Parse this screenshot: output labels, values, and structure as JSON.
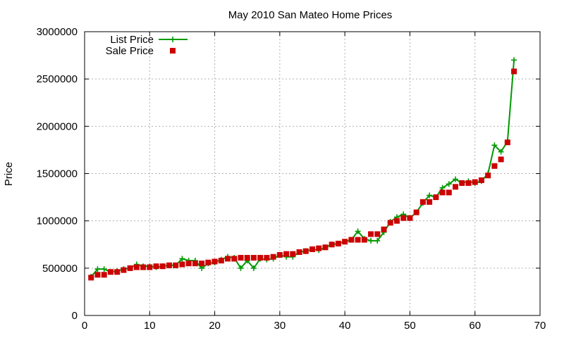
{
  "chart_data": {
    "type": "scatter",
    "title": "May 2010 San Mateo Home Prices",
    "xlabel": "",
    "ylabel": "Price",
    "xlim": [
      0,
      70
    ],
    "ylim": [
      0,
      3000000
    ],
    "xticks": [
      0,
      10,
      20,
      30,
      40,
      50,
      60,
      70
    ],
    "yticks": [
      0,
      500000,
      1000000,
      1500000,
      2000000,
      2500000,
      3000000
    ],
    "grid": true,
    "legend": "top-left",
    "colors": {
      "list": "#009900",
      "sale": "#cc0000"
    },
    "series": [
      {
        "name": "List Price",
        "style": "line-plus",
        "x": [
          1,
          2,
          3,
          4,
          5,
          6,
          7,
          8,
          9,
          10,
          11,
          12,
          13,
          14,
          15,
          16,
          17,
          18,
          19,
          20,
          21,
          22,
          23,
          24,
          25,
          26,
          27,
          28,
          29,
          30,
          31,
          32,
          33,
          34,
          35,
          36,
          37,
          38,
          39,
          40,
          41,
          42,
          43,
          44,
          45,
          46,
          47,
          48,
          49,
          50,
          51,
          52,
          53,
          54,
          55,
          56,
          57,
          58,
          59,
          60,
          61,
          62,
          63,
          64,
          65,
          66
        ],
        "y": [
          410000,
          490000,
          490000,
          460000,
          470000,
          490000,
          500000,
          540000,
          520000,
          520000,
          510000,
          520000,
          530000,
          530000,
          600000,
          580000,
          580000,
          500000,
          550000,
          560000,
          590000,
          620000,
          610000,
          500000,
          580000,
          500000,
          600000,
          590000,
          600000,
          640000,
          620000,
          620000,
          670000,
          680000,
          700000,
          690000,
          720000,
          750000,
          760000,
          780000,
          800000,
          890000,
          810000,
          790000,
          790000,
          880000,
          990000,
          1040000,
          1070000,
          1030000,
          1090000,
          1190000,
          1270000,
          1250000,
          1350000,
          1390000,
          1440000,
          1400000,
          1420000,
          1400000,
          1420000,
          1500000,
          1800000,
          1730000,
          1840000,
          2700000
        ]
      },
      {
        "name": "Sale Price",
        "style": "square",
        "x": [
          1,
          2,
          3,
          4,
          5,
          6,
          7,
          8,
          9,
          10,
          11,
          12,
          13,
          14,
          15,
          16,
          17,
          18,
          19,
          20,
          21,
          22,
          23,
          24,
          25,
          26,
          27,
          28,
          29,
          30,
          31,
          32,
          33,
          34,
          35,
          36,
          37,
          38,
          39,
          40,
          41,
          42,
          43,
          44,
          45,
          46,
          47,
          48,
          49,
          50,
          51,
          52,
          53,
          54,
          55,
          56,
          57,
          58,
          59,
          60,
          61,
          62,
          63,
          64,
          65,
          66
        ],
        "y": [
          400000,
          430000,
          430000,
          460000,
          460000,
          480000,
          500000,
          510000,
          510000,
          510000,
          520000,
          520000,
          530000,
          530000,
          540000,
          550000,
          550000,
          550000,
          560000,
          570000,
          580000,
          600000,
          600000,
          610000,
          610000,
          610000,
          610000,
          610000,
          620000,
          640000,
          650000,
          650000,
          670000,
          680000,
          700000,
          710000,
          720000,
          750000,
          760000,
          780000,
          800000,
          800000,
          800000,
          860000,
          860000,
          910000,
          980000,
          1000000,
          1030000,
          1030000,
          1090000,
          1200000,
          1200000,
          1250000,
          1300000,
          1300000,
          1360000,
          1400000,
          1400000,
          1410000,
          1430000,
          1480000,
          1580000,
          1650000,
          1830000,
          2580000
        ]
      }
    ]
  }
}
